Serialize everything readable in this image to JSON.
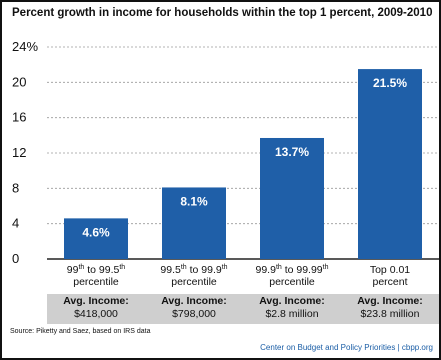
{
  "chart_data": {
    "type": "bar",
    "title": "Percent growth in income for households within the top 1 percent, 2009-2010",
    "ylim": [
      0,
      24
    ],
    "y_ticks": [
      0,
      4,
      8,
      12,
      16,
      20,
      24
    ],
    "y_tick_labels": [
      "0",
      "4",
      "8",
      "12",
      "16",
      "20",
      "24%"
    ],
    "grid": true,
    "bar_color": "#1f5fa8",
    "categories": [
      {
        "pre": "99",
        "pre_sup": "th",
        "mid": " to 99.5",
        "post_sup": "th",
        "line2": "percentile"
      },
      {
        "pre": "99.5",
        "pre_sup": "th",
        "mid": " to 99.9",
        "post_sup": "th",
        "line2": "percentile"
      },
      {
        "pre": "99.9",
        "pre_sup": "th",
        "mid": " to 99.99",
        "post_sup": "th",
        "line2": "percentile"
      },
      {
        "pre": "Top 0.01",
        "pre_sup": "",
        "mid": "",
        "post_sup": "",
        "line2": "percent"
      }
    ],
    "values": [
      4.6,
      8.1,
      13.7,
      21.5
    ],
    "data_labels": [
      "4.6%",
      "8.1%",
      "13.7%",
      "21.5%"
    ]
  },
  "avg_income": {
    "label": "Avg. Income:",
    "values": [
      "$418,000",
      "$798,000",
      "$2.8 million",
      "$23.8 million"
    ]
  },
  "source": "Source: Piketty and Saez, based on IRS data",
  "credit": "Center on Budget and Policy Priorities | cbpp.org"
}
